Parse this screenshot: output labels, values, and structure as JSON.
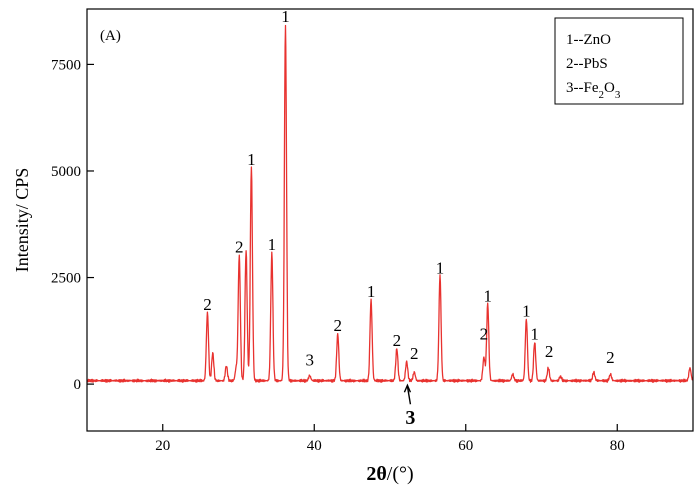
{
  "chart_data": {
    "type": "line",
    "panel_label": "(A)",
    "xlabel_theta": "2θ",
    "xlabel_unit": "/(°)",
    "ylabel": "Intensity/ CPS",
    "xlim": [
      10,
      90
    ],
    "ylim": [
      -1100,
      8800
    ],
    "xticks": [
      20,
      40,
      60,
      80
    ],
    "yticks": [
      0,
      2500,
      5000,
      7500
    ],
    "grid": false,
    "legend_position": "top-right",
    "legend": [
      {
        "num": "1--",
        "base": "ZnO",
        "sub": "",
        "rest": "",
        "sub2": ""
      },
      {
        "num": "2--",
        "base": "PbS",
        "sub": "",
        "rest": "",
        "sub2": ""
      },
      {
        "num": "3--",
        "base": "Fe",
        "sub": "2",
        "rest": "O",
        "sub2": "3"
      }
    ],
    "series": [
      {
        "color": "#e8322f",
        "baseline": 80,
        "peaks": [
          [
            25.9,
            1600
          ],
          [
            26.6,
            650
          ],
          [
            28.4,
            350
          ],
          [
            29.7,
            300
          ],
          [
            30.1,
            2950
          ],
          [
            31.0,
            3050
          ],
          [
            31.7,
            5000
          ],
          [
            34.4,
            3000
          ],
          [
            36.2,
            8350
          ],
          [
            39.4,
            120
          ],
          [
            43.1,
            1100
          ],
          [
            47.5,
            1900
          ],
          [
            50.9,
            750
          ],
          [
            52.2,
            450
          ],
          [
            53.2,
            200
          ],
          [
            56.6,
            2450
          ],
          [
            62.4,
            550
          ],
          [
            62.9,
            1800
          ],
          [
            66.2,
            150
          ],
          [
            68.0,
            1450
          ],
          [
            69.1,
            900
          ],
          [
            70.9,
            300
          ],
          [
            72.5,
            100
          ],
          [
            76.9,
            200
          ],
          [
            79.1,
            150
          ],
          [
            89.6,
            300
          ]
        ]
      }
    ],
    "annotations": [
      {
        "text": "1",
        "x": 36.2,
        "y": 8350
      },
      {
        "text": "1",
        "x": 31.7,
        "y": 5000
      },
      {
        "text": "1",
        "x": 34.4,
        "y": 3000
      },
      {
        "text": "1",
        "x": 47.5,
        "y": 1900
      },
      {
        "text": "1",
        "x": 56.6,
        "y": 2450
      },
      {
        "text": "1",
        "x": 62.9,
        "y": 1800
      },
      {
        "text": "1",
        "x": 68.0,
        "y": 1450
      },
      {
        "text": "1",
        "x": 69.1,
        "y": 900
      },
      {
        "text": "2",
        "x": 25.9,
        "y": 1600
      },
      {
        "text": "2",
        "x": 30.1,
        "y": 2950
      },
      {
        "text": "2",
        "x": 43.1,
        "y": 1100
      },
      {
        "text": "2",
        "x": 50.9,
        "y": 750
      },
      {
        "text": "2",
        "x": 53.2,
        "y": 450
      },
      {
        "text": "2",
        "x": 62.4,
        "y": 900
      },
      {
        "text": "2",
        "x": 71.0,
        "y": 500
      },
      {
        "text": "2",
        "x": 79.1,
        "y": 350
      },
      {
        "text": "3",
        "x": 39.4,
        "y": 300
      }
    ],
    "arrow_annotation": {
      "text": "3",
      "x": 52.3,
      "y": -50
    }
  }
}
